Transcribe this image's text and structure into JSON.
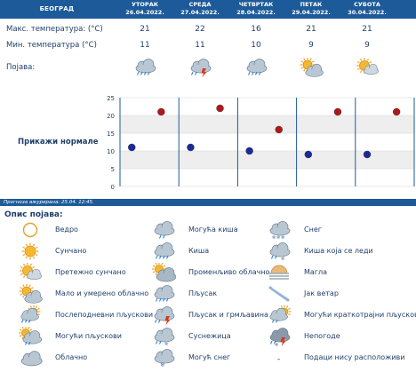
{
  "header": {
    "city": "БЕОГРАД",
    "days": [
      {
        "name": "УТОРАК",
        "date": "26.04.2022."
      },
      {
        "name": "СРЕДА",
        "date": "27.04.2022."
      },
      {
        "name": "ЧЕТВРТАК",
        "date": "28.04.2022."
      },
      {
        "name": "ПЕТАК",
        "date": "29.04.2022."
      },
      {
        "name": "СУБОТА",
        "date": "30.04.2022."
      }
    ]
  },
  "rows": {
    "max_label": "Макс. температура: (°C)",
    "min_label": "Мин. температура (°C)",
    "phen_label": "Појава:",
    "max_values": [
      "21",
      "22",
      "16",
      "21",
      "21"
    ],
    "min_values": [
      "11",
      "11",
      "10",
      "9",
      "9"
    ],
    "icons": [
      "showers-icon",
      "thunder-showers-icon",
      "showers-icon",
      "partly-cloudy-icon",
      "mostly-sunny-icon"
    ]
  },
  "chart_label": "Прикажи нормале",
  "chart_data": {
    "type": "scatter",
    "categories": [
      "26.04.2022.",
      "27.04.2022.",
      "28.04.2022.",
      "29.04.2022.",
      "30.04.2022."
    ],
    "series": [
      {
        "values": [
          21,
          22,
          16,
          21,
          21
        ],
        "color": "#b01818"
      },
      {
        "values": [
          11,
          11,
          10,
          9,
          9
        ],
        "color": "#1a2a9a"
      }
    ],
    "ylim": [
      0,
      25
    ],
    "yticks": [
      "0",
      "5",
      "10",
      "15",
      "20",
      "25"
    ],
    "grid": true
  },
  "update_text": "Прогноза ажурирана:  25.04.  12:45.",
  "legend": {
    "title": "Опис појава:",
    "items": [
      {
        "icon": "clear-icon",
        "label": "Ведро"
      },
      {
        "icon": "possible-rain-icon",
        "label": "Могућа киша"
      },
      {
        "icon": "snow-icon",
        "label": "Снег"
      },
      {
        "icon": "sunny-icon",
        "label": "Сунчано"
      },
      {
        "icon": "rain-icon",
        "label": "Киша"
      },
      {
        "icon": "sleet-icon",
        "label": "Киша која се леди"
      },
      {
        "icon": "mostly-sunny-icon",
        "label": "Претежно сунчано"
      },
      {
        "icon": "variable-cloudy-icon",
        "label": "Променљиво облачно"
      },
      {
        "icon": "fog-icon",
        "label": "Магла"
      },
      {
        "icon": "partly-cloudy-icon",
        "label": "Мало и умерено облачно"
      },
      {
        "icon": "showers-icon",
        "label": "Пљусак"
      },
      {
        "icon": "strong-wind-icon",
        "label": "Јак ветар"
      },
      {
        "icon": "afternoon-showers-icon",
        "label": "Послеподневни пљускови"
      },
      {
        "icon": "thunder-showers-icon",
        "label": "Пљусак и грмљавина"
      },
      {
        "icon": "possible-short-showers-icon",
        "label": "Могући краткотрајни пљускови"
      },
      {
        "icon": "possible-showers-icon",
        "label": "Могући пљускови"
      },
      {
        "icon": "snow-showers-icon",
        "label": "Суснежица"
      },
      {
        "icon": "storm-icon",
        "label": "Непогоде"
      },
      {
        "icon": "cloudy-icon",
        "label": "Облачно"
      },
      {
        "icon": "possible-snow-icon",
        "label": "Могућ снег"
      },
      {
        "icon": "no-data-icon",
        "label": "Подаци нису расположиви"
      }
    ],
    "no_data_mark": "-"
  }
}
